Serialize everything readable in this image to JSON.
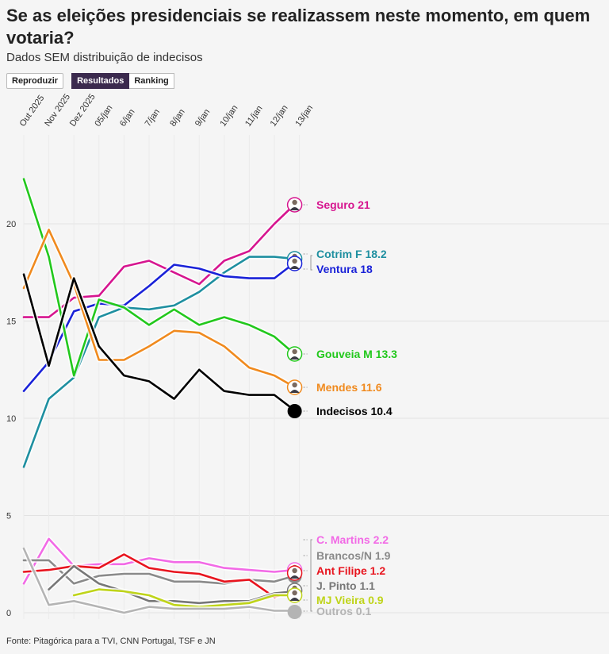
{
  "header": {
    "title": "Se as eleições presidenciais se realizassem neste momento, em quem votaria?",
    "subtitle": "Dados SEM distribuição de indecisos"
  },
  "controls": {
    "play_label": "Reproduzir",
    "results_label": "Resultados",
    "ranking_label": "Ranking",
    "active": "Resultados"
  },
  "footer": {
    "source": "Fonte: Pitagórica para a TVI, CNN Portugal, TSF e JN"
  },
  "chart_data": {
    "type": "line",
    "title": "",
    "xlabel": "",
    "ylabel": "",
    "x": [
      "Out 2025",
      "Nov 2025",
      "Dez 2025",
      "05/jan",
      "6/jan",
      "7/jan",
      "8/jan",
      "9/jan",
      "10/jan",
      "11/jan",
      "12/jan",
      "13/jan"
    ],
    "ylim": [
      0,
      24.5
    ],
    "yticks": [
      0,
      5,
      10,
      15,
      20
    ],
    "grid": true,
    "legend": "end-labels",
    "series": [
      {
        "name": "Seguro",
        "label": "Seguro 21",
        "color": "#d6158f",
        "values": [
          15.2,
          15.2,
          16.2,
          16.3,
          17.8,
          18.1,
          17.5,
          16.9,
          18.1,
          18.6,
          20.0,
          21.0
        ]
      },
      {
        "name": "Cotrim F",
        "label": "Cotrim F 18.2",
        "color": "#1e8fa0",
        "values": [
          7.5,
          11.0,
          12.1,
          15.2,
          15.7,
          15.6,
          15.8,
          16.5,
          17.5,
          18.3,
          18.3,
          18.2
        ]
      },
      {
        "name": "Ventura",
        "label": "Ventura 18",
        "color": "#1a22d8",
        "values": [
          11.4,
          12.9,
          15.5,
          15.9,
          15.8,
          16.8,
          17.9,
          17.7,
          17.3,
          17.2,
          17.2,
          18.0
        ]
      },
      {
        "name": "Gouveia M",
        "label": "Gouveia M 13.3",
        "color": "#22c81c",
        "values": [
          22.3,
          18.3,
          12.2,
          16.1,
          15.7,
          14.8,
          15.6,
          14.8,
          15.2,
          14.8,
          14.2,
          13.3
        ]
      },
      {
        "name": "Mendes",
        "label": "Mendes 11.6",
        "color": "#f08a1e",
        "values": [
          16.7,
          19.7,
          16.9,
          13.0,
          13.0,
          13.7,
          14.5,
          14.4,
          13.7,
          12.6,
          12.2,
          11.6
        ]
      },
      {
        "name": "Indecisos",
        "label": "Indecisos 10.4",
        "color": "#000000",
        "values": [
          17.4,
          12.7,
          17.2,
          13.7,
          12.2,
          11.9,
          11.0,
          12.5,
          11.4,
          11.2,
          11.2,
          10.4
        ]
      },
      {
        "name": "C. Martins",
        "label": "C. Martins 2.2",
        "color": "#f26ae6",
        "values": [
          1.5,
          3.8,
          2.4,
          2.5,
          2.5,
          2.8,
          2.6,
          2.6,
          2.3,
          2.2,
          2.1,
          2.2
        ]
      },
      {
        "name": "Brancos/N",
        "label": "Brancos/N 1.9",
        "color": "#8a8a8a",
        "values": [
          2.7,
          2.7,
          1.5,
          1.9,
          2.0,
          2.0,
          1.6,
          1.6,
          1.5,
          1.7,
          1.6,
          1.9
        ]
      },
      {
        "name": "Ant Filipe",
        "label": "Ant Filipe 1.2",
        "color": "#e8141e",
        "values": [
          2.1,
          2.2,
          2.4,
          2.3,
          3.0,
          2.3,
          2.1,
          2.0,
          1.6,
          1.7,
          0.8,
          1.2
        ]
      },
      {
        "name": "J. Pinto",
        "label": "J. Pinto 1.1",
        "color": "#777777",
        "values": [
          null,
          1.2,
          2.4,
          1.5,
          1.1,
          0.6,
          0.6,
          0.5,
          0.6,
          0.6,
          1.0,
          1.1
        ]
      },
      {
        "name": "MJ Vieira",
        "label": "MJ Vieira 0.9",
        "color": "#bfd419",
        "values": [
          null,
          null,
          0.9,
          1.2,
          1.1,
          0.9,
          0.4,
          0.3,
          0.4,
          0.5,
          0.9,
          0.9
        ]
      },
      {
        "name": "Outros",
        "label": "Outros 0.1",
        "color": "#b4b4b4",
        "values": [
          3.3,
          0.4,
          0.6,
          0.3,
          0.0,
          0.3,
          0.2,
          0.2,
          0.2,
          0.3,
          0.1,
          0.1
        ]
      }
    ]
  }
}
